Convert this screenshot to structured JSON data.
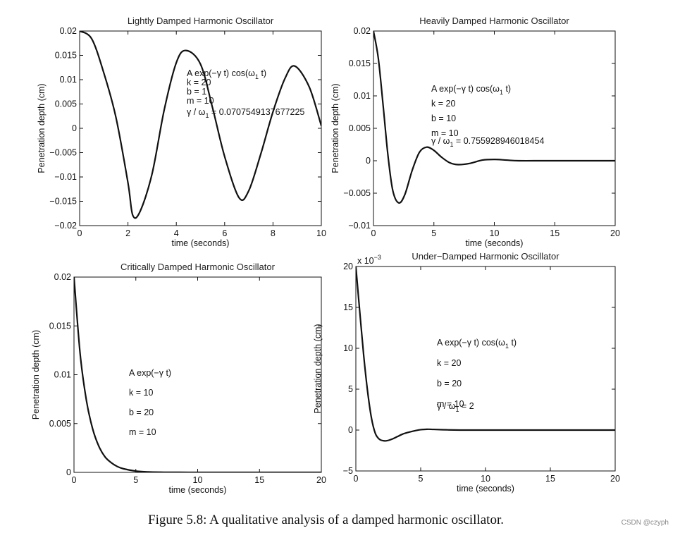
{
  "figure": {
    "caption": "Figure 5.8: A qualitative analysis of a damped harmonic oscillator.",
    "watermark": "CSDN @czyph",
    "colors": {
      "axis": "#111111",
      "curve": "#111111",
      "text": "#222222",
      "caption": "#111111",
      "watermark": "#8a8a8a"
    }
  },
  "chart_data": [
    {
      "type": "line",
      "title": "Lightly Damped Harmonic Oscillator",
      "xlabel": "time (seconds)",
      "ylabel": "Penetration depth (cm)",
      "xlim": [
        0,
        10
      ],
      "ylim": [
        -0.02,
        0.02
      ],
      "xticks": [
        "0",
        "2",
        "4",
        "6",
        "8",
        "10"
      ],
      "yticks": [
        "−0.02",
        "−0.015",
        "−0.01",
        "−0.005",
        "0",
        "0.005",
        "0.01",
        "0.015",
        "0.02"
      ],
      "y_exponent": "",
      "params": {
        "A": 0.02,
        "k": 20,
        "b": 1,
        "m": 10
      },
      "annotation": {
        "formula": {
          "pre": "A  exp(−γ t) cos(ω",
          "sub": "1",
          "post": " t)"
        },
        "lines": [
          "k = 20",
          "b = 1",
          "m = 10"
        ],
        "ratio": {
          "pre": "γ / ω",
          "sub": "1",
          "post": " = 0.0707549137677225"
        }
      },
      "series": [
        {
          "name": "A exp(-γ t) cos(ω1 t)",
          "x": [
            0,
            0.5,
            1,
            1.5,
            2,
            2.2,
            2.5,
            3,
            3.5,
            4,
            4.4,
            5,
            5.5,
            6,
            6.6,
            7,
            7.5,
            8,
            8.5,
            8.9,
            9.5,
            10
          ],
          "y": [
            0.02,
            0.0184,
            0.0114,
            0.0023,
            -0.0112,
            -0.0179,
            -0.0171,
            -0.0093,
            0.0038,
            0.0135,
            0.016,
            0.0132,
            0.0042,
            -0.0058,
            -0.0143,
            -0.0128,
            -0.0052,
            0.0034,
            0.0103,
            0.0128,
            0.0085,
            0.0005
          ]
        }
      ]
    },
    {
      "type": "line",
      "title": "Heavily Damped Harmonic Oscillator",
      "xlabel": "time (seconds)",
      "ylabel": "Penetration depth (cm)",
      "xlim": [
        0,
        20
      ],
      "ylim": [
        -0.01,
        0.02
      ],
      "xticks": [
        "0",
        "5",
        "10",
        "15",
        "20"
      ],
      "yticks": [
        "−0.01",
        "−0.005",
        "0",
        "0.005",
        "0.01",
        "0.015",
        "0.02"
      ],
      "y_exponent": "",
      "params": {
        "A": 0.02,
        "k": 20,
        "b": 10,
        "m": 10
      },
      "annotation": {
        "formula": {
          "pre": "A  exp(−γ t) cos(ω",
          "sub": "1",
          "post": " t)"
        },
        "lines": [
          "k = 20",
          "b = 10",
          "m = 10"
        ],
        "ratio": {
          "pre": "γ / ω",
          "sub": "1",
          "post": " = 0.755928946018454"
        }
      },
      "series": [
        {
          "name": "A exp(-γ t) cos(ω1 t)",
          "x": [
            0,
            0.4,
            0.8,
            1.2,
            1.6,
            2.1,
            2.6,
            3.2,
            3.8,
            4.4,
            5,
            5.6,
            6.3,
            7,
            8,
            9,
            10,
            11,
            12,
            14,
            16,
            18,
            20
          ],
          "y": [
            0.02,
            0.0158,
            0.0085,
            0.0008,
            -0.0046,
            -0.0065,
            -0.0052,
            -0.0015,
            0.0013,
            0.0021,
            0.0016,
            0.0006,
            -0.0003,
            -0.0006,
            -0.0004,
            0.0001,
            0.0002,
            0.0001,
            0.0,
            0.0,
            0.0,
            0.0,
            0.0
          ]
        }
      ]
    },
    {
      "type": "line",
      "title": "Critically Damped Harmonic Oscillator",
      "xlabel": "time (seconds)",
      "ylabel": "Penetration depth (cm)",
      "xlim": [
        0,
        20
      ],
      "ylim": [
        0,
        0.02
      ],
      "xticks": [
        "0",
        "5",
        "10",
        "15",
        "20"
      ],
      "yticks": [
        "0",
        "0.005",
        "0.01",
        "0.015",
        "0.02"
      ],
      "y_exponent": "",
      "params": {
        "A": 0.02,
        "k": 10,
        "b": 20,
        "m": 10
      },
      "annotation": {
        "formula": {
          "pre": "A  exp(−γ t)",
          "sub": "",
          "post": ""
        },
        "lines": [
          "k = 10",
          "b = 20",
          "m = 10"
        ],
        "ratio": null
      },
      "series": [
        {
          "name": "A exp(-γ t)",
          "x": [
            0,
            0.5,
            1,
            1.5,
            2,
            2.5,
            3,
            3.5,
            4,
            5,
            6,
            7,
            8,
            10,
            12,
            15,
            20
          ],
          "y": [
            0.02,
            0.0121,
            0.0074,
            0.0045,
            0.0027,
            0.0016,
            0.001,
            0.0006,
            0.00037,
            0.00013,
            5e-05,
            2e-05,
            1e-05,
            0.0,
            0.0,
            0.0,
            0.0
          ]
        }
      ]
    },
    {
      "type": "line",
      "title": "Under−Damped Harmonic Oscillator",
      "xlabel": "time (seconds)",
      "ylabel": "Penetration depth (cm)",
      "xlim": [
        0,
        20
      ],
      "ylim": [
        -5,
        20
      ],
      "xticks": [
        "0",
        "5",
        "10",
        "15",
        "20"
      ],
      "yticks": [
        "−5",
        "0",
        "5",
        "10",
        "15",
        "20"
      ],
      "y_exponent": {
        "base": "x 10",
        "power": "−3"
      },
      "params": {
        "A": 20,
        "k": 20,
        "b": 20,
        "m": 10
      },
      "annotation": {
        "formula": {
          "pre": "A  exp(−γ t) cos(ω",
          "sub": "1",
          "post": " t)"
        },
        "lines": [
          "k = 20",
          "b = 20",
          "m = 10"
        ],
        "ratio": {
          "pre": "γ / ω",
          "sub": "1",
          "post": " = 2"
        }
      },
      "series": [
        {
          "name": "A exp(-γ t) cos(ω1 t)",
          "x": [
            0,
            0.3,
            0.6,
            0.9,
            1.2,
            1.5,
            1.8,
            2.1,
            2.4,
            2.8,
            3.2,
            3.6,
            4,
            4.5,
            5,
            5.5,
            6,
            7,
            8,
            10,
            12,
            15,
            20
          ],
          "y": [
            20,
            14.5,
            9.2,
            4.8,
            1.5,
            -0.4,
            -1.1,
            -1.3,
            -1.3,
            -1.1,
            -0.8,
            -0.5,
            -0.3,
            -0.1,
            0.05,
            0.1,
            0.08,
            0.03,
            0.0,
            0.0,
            0.0,
            0.0,
            0.0
          ]
        }
      ]
    }
  ]
}
